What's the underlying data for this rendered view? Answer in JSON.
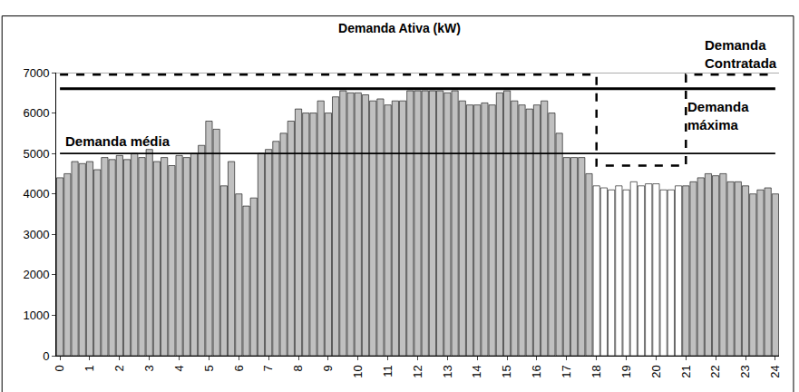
{
  "chart_data": {
    "type": "bar",
    "title": "Demanda Ativa (kW)",
    "categories": [
      "0",
      null,
      null,
      null,
      "1",
      null,
      null,
      null,
      "2",
      null,
      null,
      null,
      "3",
      null,
      null,
      null,
      "4",
      null,
      null,
      null,
      "5",
      null,
      null,
      null,
      "6",
      null,
      null,
      null,
      "7",
      null,
      null,
      null,
      "8",
      null,
      null,
      null,
      "9",
      null,
      null,
      null,
      "10",
      null,
      null,
      null,
      "11",
      null,
      null,
      null,
      "12",
      null,
      null,
      null,
      "13",
      null,
      null,
      null,
      "14",
      null,
      null,
      null,
      "15",
      null,
      null,
      null,
      "16",
      null,
      null,
      null,
      "17",
      null,
      null,
      null,
      "18",
      null,
      null,
      null,
      "19",
      null,
      null,
      null,
      "20",
      null,
      null,
      null,
      "21",
      null,
      null,
      null,
      "22",
      null,
      null,
      null,
      "23",
      null,
      null,
      null,
      "24"
    ],
    "values": [
      4400,
      4500,
      4800,
      4750,
      4800,
      4600,
      4900,
      4850,
      4950,
      4850,
      5000,
      4900,
      5100,
      4800,
      4900,
      4700,
      4950,
      4900,
      5000,
      5200,
      5800,
      5600,
      4200,
      4800,
      4000,
      3700,
      3900,
      5000,
      5100,
      5300,
      5500,
      5800,
      6100,
      6000,
      6000,
      6300,
      6000,
      6400,
      6550,
      6500,
      6500,
      6450,
      6300,
      6350,
      6200,
      6300,
      6300,
      6550,
      6550,
      6550,
      6550,
      6550,
      6500,
      6550,
      6300,
      6200,
      6200,
      6250,
      6200,
      6500,
      6550,
      6300,
      6200,
      6100,
      6200,
      6300,
      6000,
      5500,
      4900,
      4900,
      4900,
      4500,
      4200,
      4150,
      4100,
      4200,
      4100,
      4300,
      4200,
      4250,
      4250,
      4100,
      4100,
      4200,
      4200,
      4300,
      4400,
      4500,
      4450,
      4500,
      4300,
      4300,
      4200,
      4000,
      4100,
      4150,
      4000
    ],
    "colors": [
      "#c0c0c0",
      "#c0c0c0",
      "#c0c0c0",
      "#c0c0c0",
      "#c0c0c0",
      "#c0c0c0",
      "#c0c0c0",
      "#c0c0c0",
      "#c0c0c0",
      "#c0c0c0",
      "#c0c0c0",
      "#c0c0c0",
      "#c0c0c0",
      "#c0c0c0",
      "#c0c0c0",
      "#c0c0c0",
      "#c0c0c0",
      "#c0c0c0",
      "#c0c0c0",
      "#c0c0c0",
      "#c0c0c0",
      "#c0c0c0",
      "#c0c0c0",
      "#c0c0c0",
      "#c0c0c0",
      "#c0c0c0",
      "#c0c0c0",
      "#c0c0c0",
      "#c0c0c0",
      "#c0c0c0",
      "#c0c0c0",
      "#c0c0c0",
      "#c0c0c0",
      "#c0c0c0",
      "#c0c0c0",
      "#c0c0c0",
      "#c0c0c0",
      "#c0c0c0",
      "#c0c0c0",
      "#c0c0c0",
      "#c0c0c0",
      "#c0c0c0",
      "#c0c0c0",
      "#c0c0c0",
      "#c0c0c0",
      "#c0c0c0",
      "#c0c0c0",
      "#c0c0c0",
      "#c0c0c0",
      "#c0c0c0",
      "#c0c0c0",
      "#c0c0c0",
      "#c0c0c0",
      "#c0c0c0",
      "#c0c0c0",
      "#c0c0c0",
      "#c0c0c0",
      "#c0c0c0",
      "#c0c0c0",
      "#c0c0c0",
      "#c0c0c0",
      "#c0c0c0",
      "#c0c0c0",
      "#c0c0c0",
      "#c0c0c0",
      "#c0c0c0",
      "#c0c0c0",
      "#c0c0c0",
      "#c0c0c0",
      "#c0c0c0",
      "#c0c0c0",
      "#c0c0c0",
      "#ffffff",
      "#ffffff",
      "#ffffff",
      "#ffffff",
      "#ffffff",
      "#ffffff",
      "#ffffff",
      "#ffffff",
      "#ffffff",
      "#ffffff",
      "#ffffff",
      "#ffffff",
      "#c0c0c0",
      "#c0c0c0",
      "#c0c0c0",
      "#c0c0c0",
      "#c0c0c0",
      "#c0c0c0",
      "#c0c0c0",
      "#c0c0c0",
      "#c0c0c0",
      "#c0c0c0",
      "#c0c0c0",
      "#c0c0c0",
      "#c0c0c0"
    ],
    "series": [
      {
        "name": "Demanda Contratada",
        "type": "line",
        "line_style": "dashed",
        "color": "#000000",
        "values": [
          6950,
          6950,
          6950,
          6950,
          6950,
          6950,
          6950,
          6950,
          6950,
          6950,
          6950,
          6950,
          6950,
          6950,
          6950,
          6950,
          6950,
          6950,
          6950,
          6950,
          6950,
          6950,
          6950,
          6950,
          6950,
          6950,
          6950,
          6950,
          6950,
          6950,
          6950,
          6950,
          6950,
          6950,
          6950,
          6950,
          6950,
          6950,
          6950,
          6950,
          6950,
          6950,
          6950,
          6950,
          6950,
          6950,
          6950,
          6950,
          6950,
          6950,
          6950,
          6950,
          6950,
          6950,
          6950,
          6950,
          6950,
          6950,
          6950,
          6950,
          6950,
          6950,
          6950,
          6950,
          6950,
          6950,
          6950,
          6950,
          6950,
          6950,
          6950,
          6950,
          4700,
          4700,
          4700,
          4700,
          4700,
          4700,
          4700,
          4700,
          4700,
          4700,
          4700,
          4700,
          6950,
          6950,
          6950,
          6950,
          6950,
          6950,
          6950,
          6950,
          6950,
          6950,
          6950,
          6950,
          6950
        ]
      },
      {
        "name": "Demanda máxima",
        "type": "line",
        "line_style": "solid",
        "color": "#000000",
        "values": [
          6600,
          6600,
          6600,
          6600,
          6600,
          6600,
          6600,
          6600,
          6600,
          6600,
          6600,
          6600,
          6600,
          6600,
          6600,
          6600,
          6600,
          6600,
          6600,
          6600,
          6600,
          6600,
          6600,
          6600,
          6600,
          6600,
          6600,
          6600,
          6600,
          6600,
          6600,
          6600,
          6600,
          6600,
          6600,
          6600,
          6600,
          6600,
          6600,
          6600,
          6600,
          6600,
          6600,
          6600,
          6600,
          6600,
          6600,
          6600,
          6600,
          6600,
          6600,
          6600,
          6600,
          6600,
          6600,
          6600,
          6600,
          6600,
          6600,
          6600,
          6600,
          6600,
          6600,
          6600,
          6600,
          6600,
          6600,
          6600,
          6600,
          6600,
          6600,
          6600,
          6600,
          6600,
          6600,
          6600,
          6600,
          6600,
          6600,
          6600,
          6600,
          6600,
          6600,
          6600,
          6600,
          6600,
          6600,
          6600,
          6600,
          6600,
          6600,
          6600,
          6600,
          6600,
          6600,
          6600,
          6600
        ]
      },
      {
        "name": "Demanda média",
        "type": "line",
        "line_style": "solid",
        "color": "#000000",
        "values": [
          5000,
          5000,
          5000,
          5000,
          5000,
          5000,
          5000,
          5000,
          5000,
          5000,
          5000,
          5000,
          5000,
          5000,
          5000,
          5000,
          5000,
          5000,
          5000,
          5000,
          5000,
          5000,
          5000,
          5000,
          5000,
          5000,
          5000,
          5000,
          5000,
          5000,
          5000,
          5000,
          5000,
          5000,
          5000,
          5000,
          5000,
          5000,
          5000,
          5000,
          5000,
          5000,
          5000,
          5000,
          5000,
          5000,
          5000,
          5000,
          5000,
          5000,
          5000,
          5000,
          5000,
          5000,
          5000,
          5000,
          5000,
          5000,
          5000,
          5000,
          5000,
          5000,
          5000,
          5000,
          5000,
          5000,
          5000,
          5000,
          5000,
          5000,
          5000,
          5000,
          5000,
          5000,
          5000,
          5000,
          5000,
          5000,
          5000,
          5000,
          5000,
          5000,
          5000,
          5000,
          5000,
          5000,
          5000,
          5000,
          5000,
          5000,
          5000,
          5000,
          5000,
          5000,
          5000,
          5000,
          5000
        ]
      }
    ],
    "ylim": [
      0,
      7000
    ],
    "yticks": [
      0,
      1000,
      2000,
      3000,
      4000,
      5000,
      6000,
      7000
    ],
    "grid": false
  }
}
